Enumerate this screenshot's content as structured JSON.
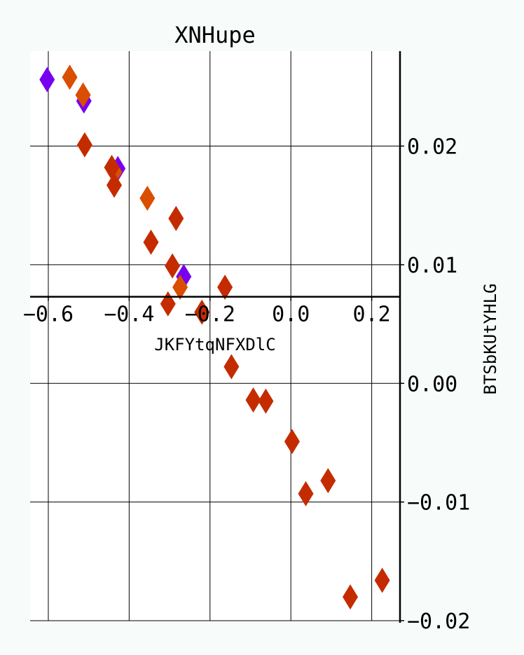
{
  "chart_data": {
    "type": "scatter",
    "title": "XNHupe",
    "xlabel": "JKFYtqNFXDlC",
    "ylabel": "BTSbKUtYHLG",
    "xlim": [
      -0.645,
      0.27
    ],
    "ylim": [
      -0.02,
      0.028
    ],
    "x_ticks": [
      -0.6,
      -0.4,
      -0.2,
      0.0,
      0.2
    ],
    "x_tick_labels": [
      "−0.6",
      "−0.4",
      "−0.2",
      "0.0",
      "0.2"
    ],
    "y_ticks": [
      0.02,
      0.01,
      0.0,
      -0.01,
      -0.02
    ],
    "y_tick_labels": [
      "0.02",
      "0.01",
      "0.00",
      "−0.01",
      "−0.02"
    ],
    "x_axis_at_y": 0.0073,
    "y_axis_at_x": 0.27,
    "grid": true,
    "marker": "diamond",
    "series": [
      {
        "color": "#7700ee",
        "points": [
          {
            "x": -0.603,
            "y": 0.0256
          },
          {
            "x": -0.512,
            "y": 0.0238
          },
          {
            "x": -0.428,
            "y": 0.0181
          },
          {
            "x": -0.265,
            "y": 0.009
          }
        ]
      },
      {
        "color": "#d94e00",
        "points": [
          {
            "x": -0.547,
            "y": 0.0258
          },
          {
            "x": -0.514,
            "y": 0.0243
          },
          {
            "x": -0.436,
            "y": 0.0178
          },
          {
            "x": -0.355,
            "y": 0.0156
          },
          {
            "x": -0.274,
            "y": 0.0081
          }
        ]
      },
      {
        "color": "#c42c00",
        "points": [
          {
            "x": -0.51,
            "y": 0.0201
          },
          {
            "x": -0.443,
            "y": 0.0182
          },
          {
            "x": -0.437,
            "y": 0.0167
          },
          {
            "x": -0.346,
            "y": 0.0119
          },
          {
            "x": -0.284,
            "y": 0.0139
          },
          {
            "x": -0.293,
            "y": 0.0099
          },
          {
            "x": -0.304,
            "y": 0.0067
          },
          {
            "x": -0.22,
            "y": 0.006
          },
          {
            "x": -0.163,
            "y": 0.0081
          },
          {
            "x": -0.147,
            "y": 0.0014
          },
          {
            "x": -0.093,
            "y": -0.0014
          },
          {
            "x": -0.062,
            "y": -0.0015
          },
          {
            "x": 0.003,
            "y": -0.0049
          },
          {
            "x": 0.037,
            "y": -0.0093
          },
          {
            "x": 0.092,
            "y": -0.0082
          },
          {
            "x": 0.147,
            "y": -0.018
          },
          {
            "x": 0.226,
            "y": -0.0166
          }
        ]
      }
    ]
  }
}
